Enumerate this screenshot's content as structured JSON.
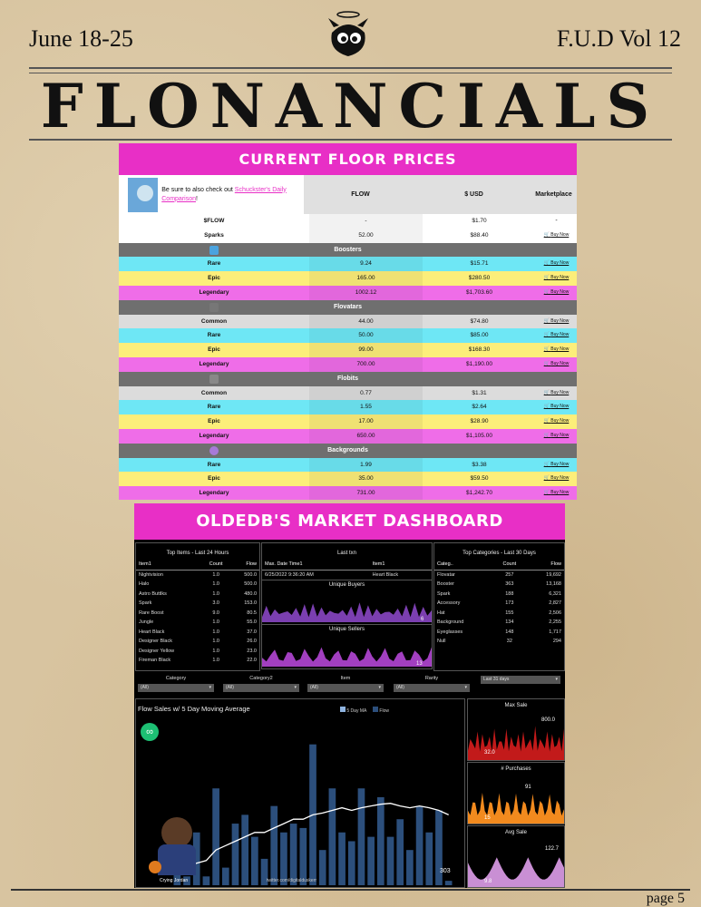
{
  "header": {
    "date": "June 18-25",
    "volume": "F.U.D Vol 12",
    "masthead": "FLONANCIALS"
  },
  "floor": {
    "title": "CURRENT FLOOR PRICES",
    "note_prefix": "Be sure to also check out ",
    "note_link": "Schuckster's Daily Comparison",
    "note_suffix": "!",
    "columns": [
      "FLOW",
      "$ USD",
      "Marketplace"
    ],
    "buy_label": "Buy Now",
    "top_rows": [
      {
        "name": "$FLOW",
        "flow": "-",
        "usd": "$1.70",
        "market": "-",
        "color": "white"
      },
      {
        "name": "Sparks",
        "flow": "52.00",
        "usd": "$88.40",
        "market": "buy",
        "color": "white"
      }
    ],
    "sections": [
      {
        "name": "Boosters",
        "rows": [
          {
            "name": "Rare",
            "flow": "9.24",
            "usd": "$15.71",
            "color": "cyan"
          },
          {
            "name": "Epic",
            "flow": "165.00",
            "usd": "$280.50",
            "color": "yel"
          },
          {
            "name": "Legendary",
            "flow": "1002.12",
            "usd": "$1,703.60",
            "color": "pink"
          }
        ]
      },
      {
        "name": "Flovatars",
        "rows": [
          {
            "name": "Common",
            "flow": "44.00",
            "usd": "$74.80",
            "color": "grey"
          },
          {
            "name": "Rare",
            "flow": "50.00",
            "usd": "$85.00",
            "color": "cyan"
          },
          {
            "name": "Epic",
            "flow": "99.00",
            "usd": "$168.30",
            "color": "yel"
          },
          {
            "name": "Legendary",
            "flow": "700.00",
            "usd": "$1,190.00",
            "color": "pink"
          }
        ]
      },
      {
        "name": "Flobits",
        "rows": [
          {
            "name": "Common",
            "flow": "0.77",
            "usd": "$1.31",
            "color": "grey"
          },
          {
            "name": "Rare",
            "flow": "1.55",
            "usd": "$2.64",
            "color": "cyan"
          },
          {
            "name": "Epic",
            "flow": "17.00",
            "usd": "$28.90",
            "color": "yel"
          },
          {
            "name": "Legendary",
            "flow": "650.00",
            "usd": "$1,105.00",
            "color": "pink"
          }
        ]
      },
      {
        "name": "Backgrounds",
        "rows": [
          {
            "name": "Rare",
            "flow": "1.99",
            "usd": "$3.38",
            "color": "cyan"
          },
          {
            "name": "Epic",
            "flow": "35.00",
            "usd": "$59.50",
            "color": "yel"
          },
          {
            "name": "Legendary",
            "flow": "731.00",
            "usd": "$1,242.70",
            "color": "pink"
          }
        ]
      }
    ]
  },
  "dashboard": {
    "title": "OLDEDB'S MARKET DASHBOARD",
    "top_items": {
      "title": "Top Items - Last 24 Hours",
      "headers": [
        "Item1",
        "Count",
        "Flow"
      ],
      "rows": [
        [
          "Nightvision",
          "1.0",
          "500.0"
        ],
        [
          "Halo",
          "1.0",
          "500.0"
        ],
        [
          "Astro Buttlks",
          "1.0",
          "480.0"
        ],
        [
          "Spark",
          "3.0",
          "153.0"
        ],
        [
          "Rare Boost",
          "9.0",
          "80.5"
        ],
        [
          "Jungle",
          "1.0",
          "55.0"
        ],
        [
          "Heart Black",
          "1.0",
          "37.0"
        ],
        [
          "Designer Black",
          "1.0",
          "26.0"
        ],
        [
          "Designer Yellow",
          "1.0",
          "23.0"
        ],
        [
          "Fireman Black",
          "1.0",
          "22.0"
        ]
      ]
    },
    "last_txn": {
      "title": "Last txn",
      "headers": [
        "Max. Date Time1",
        "Item1"
      ],
      "values": [
        "6/25/2022 9:36:20 AM",
        "Heart Black"
      ]
    },
    "unique_buyers": {
      "title": "Unique Buyers",
      "value": "6"
    },
    "unique_sellers": {
      "title": "Unique Sellers",
      "value": "13"
    },
    "top_categories": {
      "title": "Top Categories - Last 30 Days",
      "headers": [
        "Categ..",
        "Count",
        "Flow"
      ],
      "rows": [
        [
          "Flovatar",
          "257",
          "19,692"
        ],
        [
          "Booster",
          "363",
          "13,168"
        ],
        [
          "Spark",
          "188",
          "6,321"
        ],
        [
          "Accessory",
          "173",
          "2,827"
        ],
        [
          "Hat",
          "155",
          "2,506"
        ],
        [
          "Background",
          "134",
          "2,255"
        ],
        [
          "Eyeglasses",
          "148",
          "1,717"
        ],
        [
          "Null",
          "32",
          "294"
        ]
      ]
    },
    "filters": [
      {
        "label": "Category",
        "value": "(All)"
      },
      {
        "label": "Category2",
        "value": "(All)"
      },
      {
        "label": "Item",
        "value": "(All)"
      },
      {
        "label": "Rarity",
        "value": "(All)"
      },
      {
        "label": "",
        "value": "Last 31 days"
      }
    ],
    "flow_chart": {
      "title": "Flow Sales w/ 5 Day Moving Average",
      "legend_ma": "5 Day MA",
      "legend_flow": "Flow",
      "last_value": "303",
      "credit": "twitter.com/digitalduskerr",
      "caption": "Crying Jordan"
    },
    "max_sale": {
      "title": "Max Sale",
      "max_label": "800.0",
      "min_label": "32.0"
    },
    "purchases": {
      "title": "# Purchases",
      "max_label": "91",
      "min_label": "15"
    },
    "avg_sale": {
      "title": "Avg Sale",
      "max_label": "122.7",
      "min_label": "9.8"
    },
    "colors": {
      "bar": "#2c4f7c",
      "ma": "#ffffff",
      "buyers": "#7b3fb0",
      "sellers": "#a23fc0",
      "max_sale": "#c21a1a",
      "purchases": "#f28a1e",
      "avg_sale": "#c98fd4"
    }
  },
  "chart_data": {
    "type": "bar",
    "title": "Flow Sales w/ 5 Day Moving Average",
    "series": [
      {
        "name": "Flow",
        "values": [
          20,
          10,
          60,
          10,
          110,
          20,
          70,
          80,
          55,
          30,
          90,
          60,
          70,
          65,
          160,
          40,
          110,
          60,
          50,
          110,
          55,
          100,
          55,
          75,
          40,
          90,
          60,
          85,
          5
        ]
      },
      {
        "name": "5 Day MA",
        "values": [
          20,
          20,
          25,
          28,
          40,
          45,
          50,
          55,
          60,
          60,
          65,
          70,
          75,
          75,
          80,
          82,
          85,
          88,
          85,
          88,
          90,
          92,
          93,
          90,
          88,
          90,
          88,
          85,
          80
        ]
      }
    ]
  },
  "footer": {
    "page": "page 5"
  }
}
